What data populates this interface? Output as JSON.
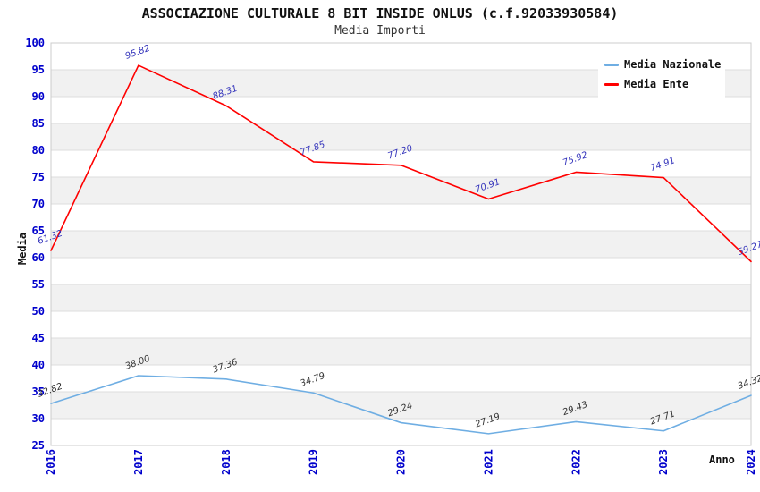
{
  "title": "ASSOCIAZIONE CULTURALE 8 BIT INSIDE ONLUS (c.f.92033930584)",
  "subtitle": "Media Importi",
  "chart_data": {
    "type": "line",
    "x": [
      "2016",
      "2017",
      "2018",
      "2019",
      "2020",
      "2021",
      "2022",
      "2023",
      "2024"
    ],
    "series": [
      {
        "name": "Media Nazionale",
        "color": "#6FAEE3",
        "label_color": "#333333",
        "values": [
          32.82,
          38.0,
          37.36,
          34.79,
          29.24,
          27.19,
          29.43,
          27.71,
          34.32
        ]
      },
      {
        "name": "Media Ente",
        "color": "#FF0000",
        "label_color": "#3333BB",
        "values": [
          61.32,
          95.82,
          88.31,
          77.85,
          77.2,
          70.91,
          75.92,
          74.91,
          59.27
        ]
      }
    ],
    "xlabel": "Anno",
    "ylabel": "Media",
    "ylim": [
      25,
      100
    ],
    "ytick_step": 5,
    "grid": "horizontal-bands",
    "legend_position": "top-right",
    "colors": {
      "band": "#F1F1F1",
      "gridline": "#DDDDDD",
      "plot_border": "#CCCCCC",
      "tick_label": "#0000CC",
      "background": "#FFFFFF"
    }
  }
}
